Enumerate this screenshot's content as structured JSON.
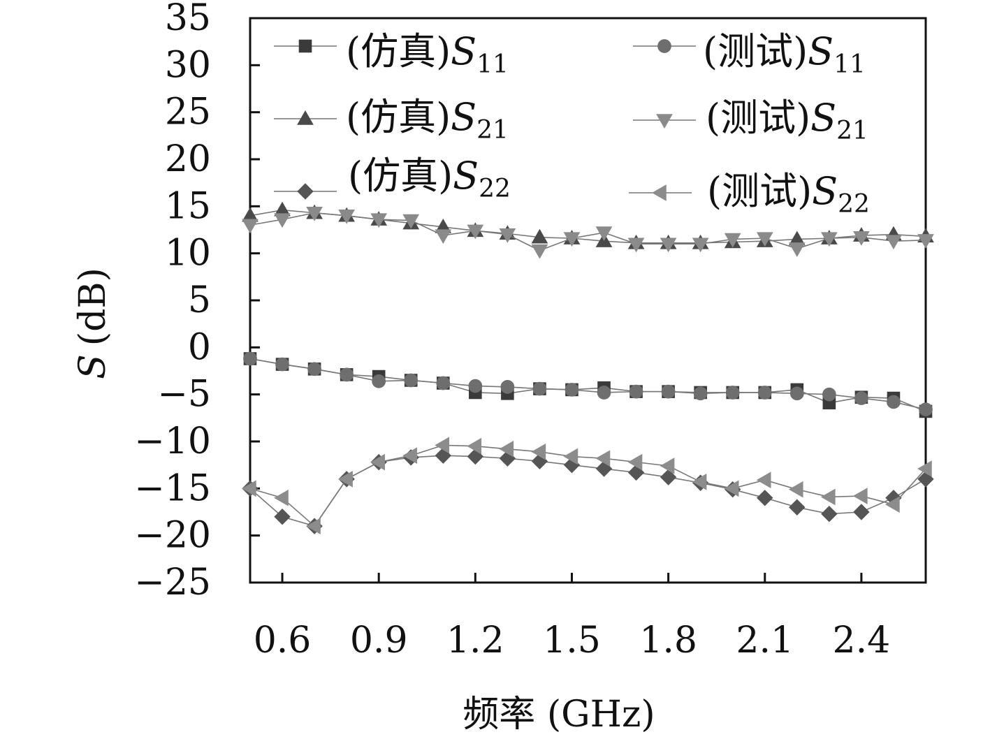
{
  "chart_data": {
    "type": "line",
    "xlabel": "频率 (GHz)",
    "ylabel_italic": "S",
    "ylabel_unit": "(dB)",
    "xlim": [
      0.5,
      2.6
    ],
    "ylim": [
      -25,
      35
    ],
    "x_ticks": [
      0.6,
      0.9,
      1.2,
      1.5,
      1.8,
      2.1,
      2.4
    ],
    "x_tick_labels": [
      "0.6",
      "0.9",
      "1.2",
      "1.5",
      "1.8",
      "2.1",
      "2.4"
    ],
    "y_ticks": [
      35,
      30,
      25,
      20,
      15,
      10,
      5,
      0,
      -5,
      -10,
      -15,
      -20,
      -25
    ],
    "y_tick_labels": [
      "35",
      "30",
      "25",
      "20",
      "15",
      "10",
      "5",
      "0",
      "−5",
      "−10",
      "−15",
      "−20",
      "−25"
    ],
    "grid": false,
    "legend_position": "top",
    "x": [
      0.5,
      0.6,
      0.7,
      0.8,
      0.9,
      1.0,
      1.1,
      1.2,
      1.3,
      1.4,
      1.5,
      1.6,
      1.7,
      1.8,
      1.9,
      2.0,
      2.1,
      2.2,
      2.3,
      2.4,
      2.5,
      2.6
    ],
    "series": [
      {
        "prefix": "(仿真)",
        "symbol": "S",
        "subscript": "11",
        "marker": "square",
        "color": "#3a3a3a",
        "values": [
          -1.2,
          -1.8,
          -2.3,
          -2.9,
          -3.1,
          -3.5,
          -3.8,
          -4.8,
          -4.9,
          -4.4,
          -4.5,
          -4.3,
          -4.7,
          -4.7,
          -4.8,
          -4.8,
          -4.8,
          -4.5,
          -5.9,
          -5.3,
          -5.4,
          -6.8
        ]
      },
      {
        "prefix": "(测试)",
        "symbol": "S",
        "subscript": "11",
        "marker": "circle",
        "color": "#6e6e6e",
        "values": [
          -1.2,
          -1.8,
          -2.3,
          -2.9,
          -3.6,
          -3.5,
          -3.8,
          -4.1,
          -4.2,
          -4.4,
          -4.5,
          -4.8,
          -4.7,
          -4.7,
          -4.9,
          -4.8,
          -4.8,
          -4.9,
          -5.0,
          -5.4,
          -5.8,
          -6.6
        ]
      },
      {
        "prefix": "(仿真)",
        "symbol": "S",
        "subscript": "21",
        "marker": "triangle-up",
        "color": "#4a4a4a",
        "values": [
          14.0,
          14.6,
          14.3,
          14.0,
          13.6,
          13.2,
          12.8,
          12.4,
          12.1,
          11.7,
          11.6,
          11.3,
          11.1,
          11.1,
          11.1,
          11.2,
          11.3,
          11.5,
          11.6,
          11.9,
          12.0,
          11.8
        ]
      },
      {
        "prefix": "(测试)",
        "symbol": "S",
        "subscript": "21",
        "marker": "triangle-down",
        "color": "#8a8a8a",
        "values": [
          13.0,
          13.6,
          14.3,
          14.0,
          13.6,
          13.5,
          11.9,
          12.4,
          12.0,
          10.3,
          11.6,
          12.2,
          11.0,
          11.0,
          11.0,
          11.5,
          11.6,
          10.5,
          11.6,
          11.7,
          11.3,
          11.4
        ]
      },
      {
        "prefix": "(仿真)",
        "symbol": "S",
        "subscript": "22",
        "marker": "diamond",
        "color": "#555555",
        "values": [
          -15.0,
          -18.0,
          -19.0,
          -14.0,
          -12.2,
          -11.7,
          -11.5,
          -11.6,
          -11.8,
          -12.1,
          -12.5,
          -12.9,
          -13.3,
          -13.8,
          -14.4,
          -15.1,
          -16.0,
          -17.0,
          -17.7,
          -17.5,
          -16.0,
          -14.0
        ]
      },
      {
        "prefix": "(测试)",
        "symbol": "S",
        "subscript": "22",
        "marker": "triangle-left",
        "color": "#8c8c8c",
        "values": [
          -15.0,
          -16.0,
          -19.0,
          -14.0,
          -12.2,
          -11.5,
          -10.4,
          -10.5,
          -10.8,
          -11.1,
          -11.6,
          -11.8,
          -12.2,
          -12.6,
          -14.3,
          -15.0,
          -14.1,
          -15.1,
          -15.9,
          -15.8,
          -16.7,
          -12.9
        ]
      }
    ]
  }
}
